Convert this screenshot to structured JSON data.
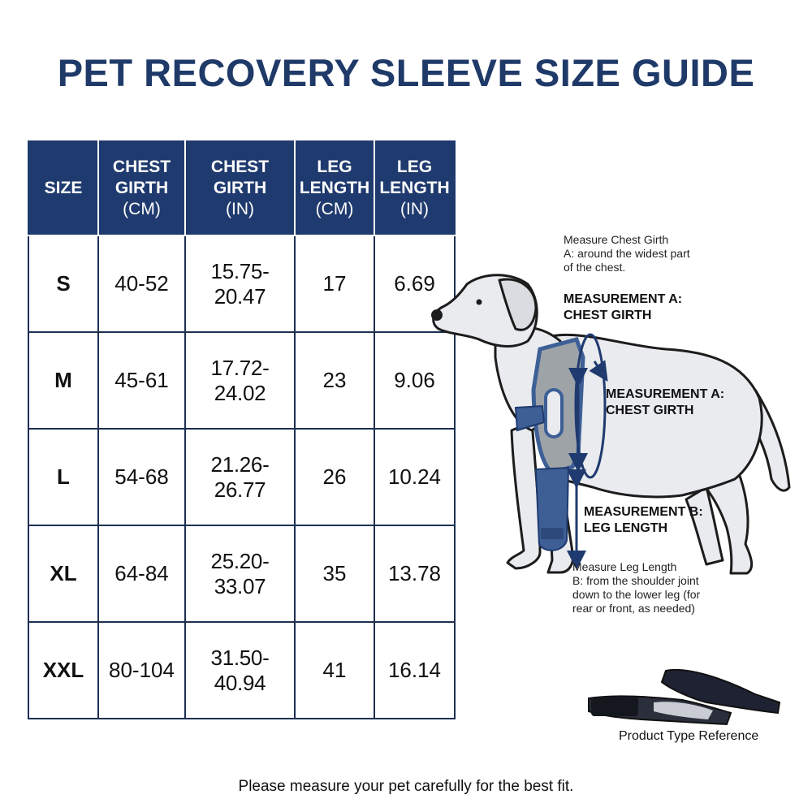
{
  "title": "PET RECOVERY SLEEVE SIZE GUIDE",
  "table": {
    "headers": [
      {
        "line1": "SIZE",
        "line2": "",
        "unit": ""
      },
      {
        "line1": "CHEST",
        "line2": "GIRTH",
        "unit": "(CM)"
      },
      {
        "line1": "CHEST",
        "line2": "GIRTH",
        "unit": "(IN)"
      },
      {
        "line1": "LEG",
        "line2": "LENGTH",
        "unit": "(CM)"
      },
      {
        "line1": "LEG",
        "line2": "LENGTH",
        "unit": "(IN)"
      }
    ],
    "rows": [
      {
        "size": "S",
        "chest_cm": "40-52",
        "chest_in": "15.75-20.47",
        "leg_cm": "17",
        "leg_in": "6.69"
      },
      {
        "size": "M",
        "chest_cm": "45-61",
        "chest_in": "17.72-24.02",
        "leg_cm": "23",
        "leg_in": "9.06"
      },
      {
        "size": "L",
        "chest_cm": "54-68",
        "chest_in": "21.26-26.77",
        "leg_cm": "26",
        "leg_in": "10.24"
      },
      {
        "size": "XL",
        "chest_cm": "64-84",
        "chest_in": "25.20-33.07",
        "leg_cm": "35",
        "leg_in": "13.78"
      },
      {
        "size": "XXL",
        "chest_cm": "80-104",
        "chest_in": "31.50-40.94",
        "leg_cm": "41",
        "leg_in": "16.14"
      }
    ]
  },
  "diagram": {
    "chest_note": [
      "Measure Chest Girth",
      "A: around the widest part",
      "of the chest."
    ],
    "label_a_top": [
      "MEASUREMENT A:",
      "CHEST GIRTH"
    ],
    "label_a_side": [
      "MEASUREMENT A:",
      "CHEST GIRTH"
    ],
    "label_b": [
      "MEASUREMENT B:",
      "LEG LENGTH"
    ],
    "leg_note": [
      "Measure Leg Length",
      "B: from the shoulder joint",
      "down to the lower leg (for",
      "rear or front, as needed)"
    ],
    "product_ref": "Product Type Reference"
  },
  "footer": "Please measure your pet carefully for the best fit.",
  "colors": {
    "navy": "#1f3a6e",
    "sleeve_blue": "#3d5f96",
    "sleeve_gray": "#9ea3a8"
  }
}
